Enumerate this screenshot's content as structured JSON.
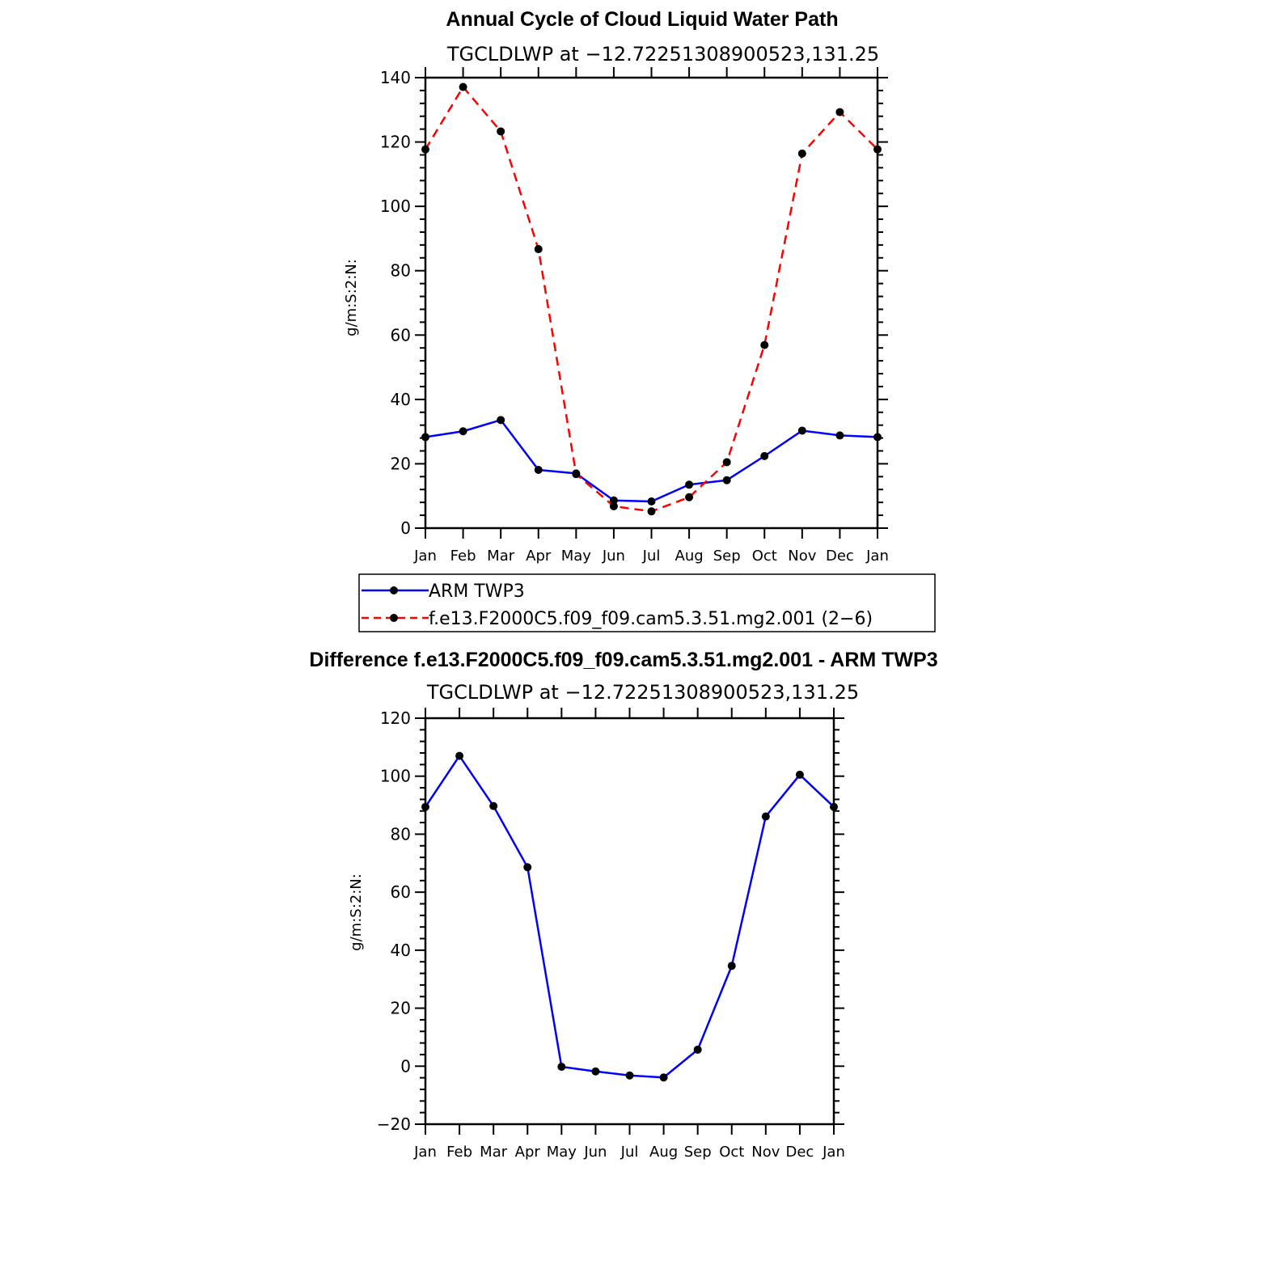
{
  "chart_data": [
    {
      "type": "line",
      "title": "Annual Cycle of Cloud Liquid Water Path",
      "subtitle": "TGCLDLWP at −12.72251308900523,131.25",
      "ylabel": "g/m:S:2:N:",
      "xlabel": "",
      "categories": [
        "Jan",
        "Feb",
        "Mar",
        "Apr",
        "May",
        "Jun",
        "Jul",
        "Aug",
        "Sep",
        "Oct",
        "Nov",
        "Dec",
        "Jan"
      ],
      "ylim": [
        0,
        140
      ],
      "yticks": [
        0,
        20,
        40,
        60,
        80,
        100,
        120,
        140
      ],
      "series": [
        {
          "name": "ARM TWP3",
          "color": "#0000ff",
          "dash": "solid",
          "values": [
            28.3,
            30.1,
            33.6,
            18.1,
            17.0,
            8.6,
            8.3,
            13.5,
            14.9,
            22.4,
            30.3,
            28.8,
            28.3
          ]
        },
        {
          "name": "f.e13.F2000C5.f09_f09.cam5.3.51.mg2.001 (2−6)",
          "color": "#ff0000",
          "dash": "dashed",
          "values": [
            117.7,
            137.1,
            123.3,
            86.7,
            16.8,
            6.8,
            5.2,
            9.6,
            20.5,
            56.9,
            116.4,
            129.3,
            117.7
          ]
        }
      ],
      "legend_position": "below"
    },
    {
      "type": "line",
      "title": "Difference f.e13.F2000C5.f09_f09.cam5.3.51.mg2.001 - ARM TWP3",
      "subtitle": "TGCLDLWP at −12.72251308900523,131.25",
      "ylabel": "g/m:S:2:N:",
      "xlabel": "",
      "categories": [
        "Jan",
        "Feb",
        "Mar",
        "Apr",
        "May",
        "Jun",
        "Jul",
        "Aug",
        "Sep",
        "Oct",
        "Nov",
        "Dec",
        "Jan"
      ],
      "ylim": [
        -20,
        120
      ],
      "yticks": [
        -20,
        0,
        20,
        40,
        60,
        80,
        100,
        120
      ],
      "ytick_labels": [
        "−20",
        "0",
        "20",
        "40",
        "60",
        "80",
        "100",
        "120"
      ],
      "series": [
        {
          "name": "Difference",
          "color": "#0000ff",
          "dash": "solid",
          "values": [
            89.4,
            107.0,
            89.7,
            68.6,
            -0.2,
            -1.8,
            -3.2,
            -3.9,
            5.7,
            34.6,
            86.1,
            100.5,
            89.4
          ]
        }
      ]
    }
  ]
}
